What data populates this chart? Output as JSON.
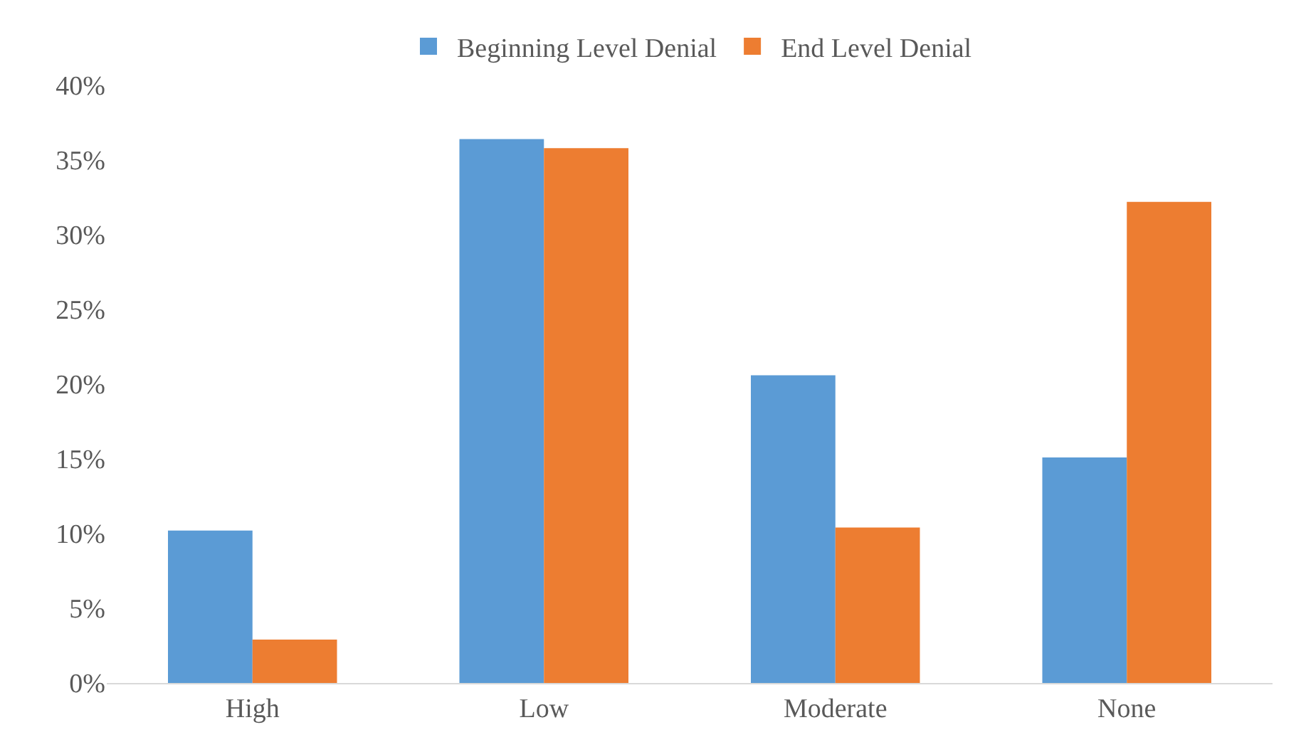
{
  "chart_data": {
    "type": "bar",
    "categories": [
      "High",
      "Low",
      "Moderate",
      "None"
    ],
    "series": [
      {
        "name": "Beginning Level Denial",
        "color": "#5b9bd5",
        "values": [
          10.2,
          36.4,
          20.6,
          15.1
        ]
      },
      {
        "name": "End Level Denial",
        "color": "#ed7d31",
        "values": [
          2.9,
          35.8,
          10.4,
          32.2
        ]
      }
    ],
    "ylim": [
      0,
      40
    ],
    "yticks": [
      {
        "value": 0,
        "label": "0%"
      },
      {
        "value": 5,
        "label": "5%"
      },
      {
        "value": 10,
        "label": "10%"
      },
      {
        "value": 15,
        "label": "15%"
      },
      {
        "value": 20,
        "label": "20%"
      },
      {
        "value": 25,
        "label": "25%"
      },
      {
        "value": 30,
        "label": "30%"
      },
      {
        "value": 35,
        "label": "35%"
      },
      {
        "value": 40,
        "label": "40%"
      }
    ],
    "grid": false,
    "legend": "top"
  }
}
